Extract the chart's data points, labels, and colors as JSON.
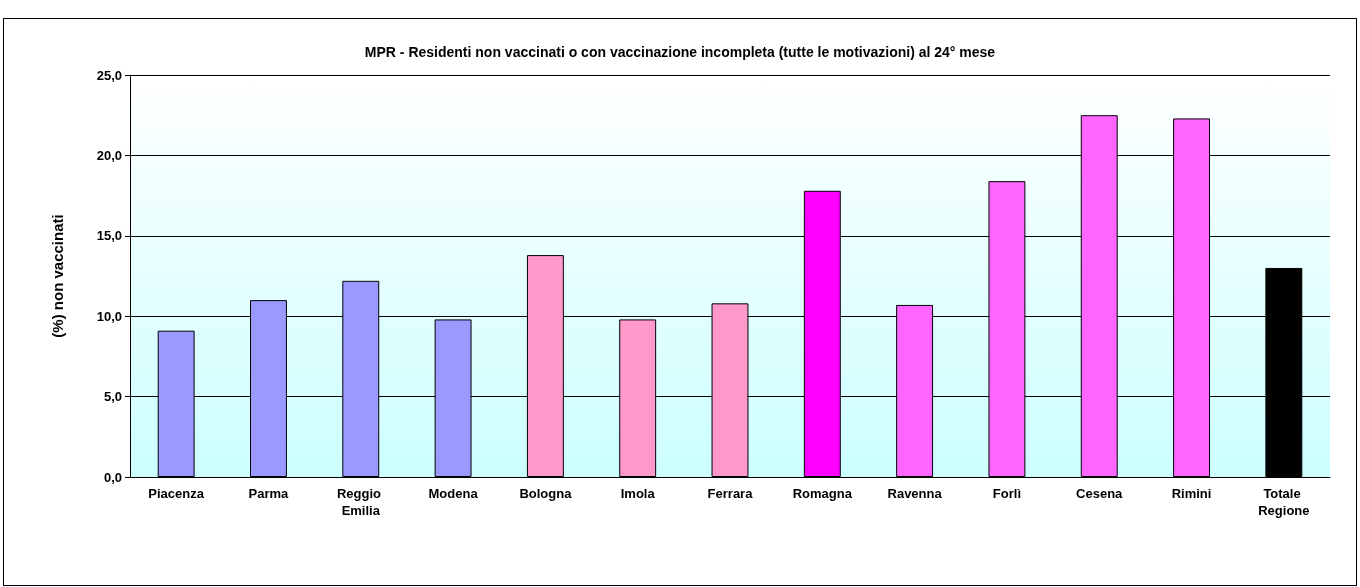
{
  "chart_data": {
    "type": "bar",
    "title": "MPR - Residenti non vaccinati o con vaccinazione incompleta (tutte le motivazioni) al 24° mese",
    "ylabel": "(%) non vaccinati",
    "categories": [
      "Piacenza",
      "Parma",
      "Reggio Emilia",
      "Modena",
      "Bologna",
      "Imola",
      "Ferrara",
      "Romagna",
      "Ravenna",
      "Forlì",
      "Cesena",
      "Rimini",
      "Totale Regione"
    ],
    "values": [
      9.1,
      11.0,
      12.2,
      9.8,
      13.8,
      9.8,
      10.8,
      17.8,
      10.7,
      18.4,
      22.5,
      22.3,
      13.0
    ],
    "colors": [
      "#9999ff",
      "#9999ff",
      "#9999ff",
      "#9999ff",
      "#ff99cc",
      "#ff99cc",
      "#ff99cc",
      "#ff00ff",
      "#ff66ff",
      "#ff66ff",
      "#ff66ff",
      "#ff66ff",
      "#000000"
    ],
    "ylim": [
      0,
      25
    ],
    "yticks": [
      {
        "value": 0,
        "label": "0,0"
      },
      {
        "value": 5,
        "label": "5,0"
      },
      {
        "value": 10,
        "label": "10,0"
      },
      {
        "value": 15,
        "label": "15,0"
      },
      {
        "value": 20,
        "label": "20,0"
      },
      {
        "value": 25,
        "label": "25,0"
      }
    ],
    "grid": "y"
  }
}
